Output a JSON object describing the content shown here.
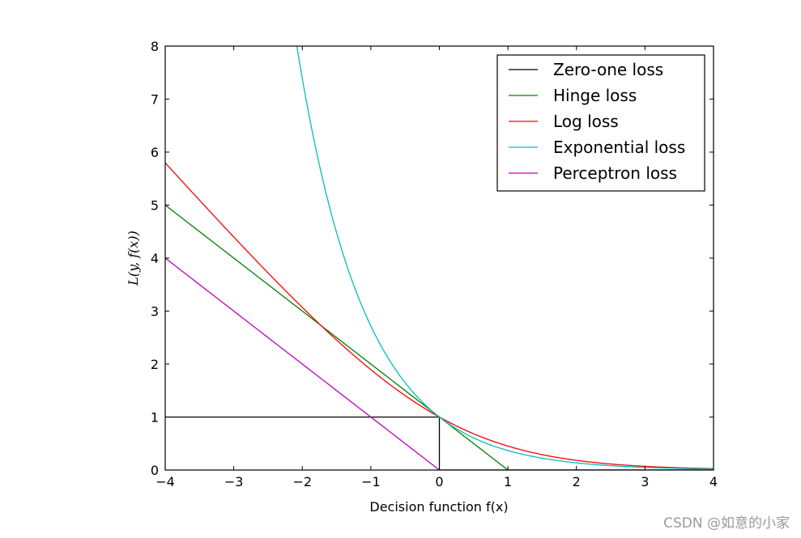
{
  "chart_data": {
    "type": "line",
    "xlabel": "Decision function f(x)",
    "ylabel": "L(y, f(x))",
    "xlim": [
      -4,
      4
    ],
    "ylim": [
      0,
      8
    ],
    "xticks": [
      -4,
      -3,
      -2,
      -1,
      0,
      1,
      2,
      3,
      4
    ],
    "yticks": [
      0,
      1,
      2,
      3,
      4,
      5,
      6,
      7,
      8
    ],
    "xtick_labels": [
      "−4",
      "−3",
      "−2",
      "−1",
      "0",
      "1",
      "2",
      "3",
      "4"
    ],
    "ytick_labels": [
      "0",
      "1",
      "2",
      "3",
      "4",
      "5",
      "6",
      "7",
      "8"
    ],
    "grid": false,
    "legend_position": "top-right",
    "series": [
      {
        "name": "Zero-one loss",
        "color": "#000000",
        "formula": "zero-one",
        "x": [
          -4,
          0,
          0,
          4
        ],
        "y": [
          1,
          1,
          0,
          0
        ]
      },
      {
        "name": "Hinge loss",
        "color": "#008000",
        "formula": "hinge",
        "x": [
          -4,
          1,
          4
        ],
        "y": [
          5,
          0,
          0
        ]
      },
      {
        "name": "Log loss",
        "color": "#ff0000",
        "formula": "log",
        "x": [
          -4,
          -2,
          0,
          2,
          4
        ],
        "y": [
          5.8,
          3.1,
          1.0,
          0.18,
          0.03
        ]
      },
      {
        "name": "Exponential loss",
        "color": "#00bfbf",
        "formula": "exponential",
        "x": [
          -2.08,
          -1,
          0,
          1,
          2,
          4
        ],
        "y": [
          8,
          2.72,
          1.0,
          0.37,
          0.14,
          0.02
        ]
      },
      {
        "name": "Perceptron loss",
        "color": "#bf00bf",
        "formula": "perceptron",
        "x": [
          -4,
          0,
          4
        ],
        "y": [
          4,
          0,
          0
        ]
      }
    ]
  },
  "watermark": "CSDN @如意的小家"
}
